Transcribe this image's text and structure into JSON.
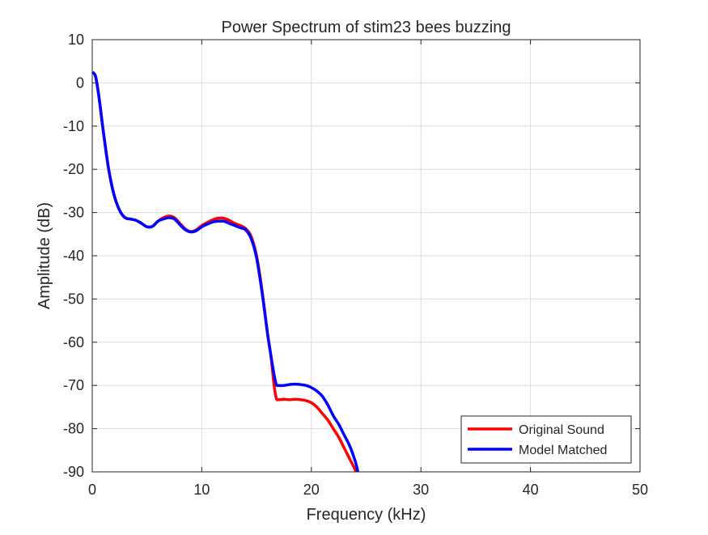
{
  "chart_data": {
    "type": "line",
    "title": "Power Spectrum of stim23 bees buzzing",
    "xlabel": "Frequency (kHz)",
    "ylabel": "Amplitude (dB)",
    "xlim": [
      0,
      50
    ],
    "ylim": [
      -90,
      10
    ],
    "xticks": [
      0,
      10,
      20,
      30,
      40,
      50
    ],
    "yticks": [
      10,
      0,
      -10,
      -20,
      -30,
      -40,
      -50,
      -60,
      -70,
      -80,
      -90
    ],
    "grid": true,
    "legend_position": "bottom-right",
    "series": [
      {
        "name": "Original Sound",
        "color": "#ff0000",
        "x": [
          0,
          0.3,
          0.6,
          1.0,
          1.5,
          2.0,
          2.5,
          3.0,
          3.5,
          4.0,
          4.5,
          5.0,
          5.5,
          6.0,
          6.5,
          7.0,
          7.5,
          8.0,
          8.5,
          9.0,
          9.5,
          10.0,
          10.5,
          11.0,
          11.5,
          12.0,
          12.5,
          13.0,
          13.5,
          14.0,
          14.5,
          15.0,
          15.5,
          16.0,
          16.3,
          16.6,
          16.8,
          17.0,
          17.5,
          18.0,
          18.5,
          19.0,
          19.5,
          20.0,
          20.5,
          21.0,
          21.5,
          22.0,
          22.5,
          23.0,
          23.5,
          24.0,
          24.3
        ],
        "y": [
          2.5,
          1.5,
          -3.0,
          -11.0,
          -20.0,
          -26.0,
          -29.5,
          -31.2,
          -31.5,
          -31.8,
          -32.5,
          -33.3,
          -33.2,
          -32.0,
          -31.2,
          -30.8,
          -31.2,
          -32.5,
          -33.8,
          -34.4,
          -34.0,
          -33.0,
          -32.3,
          -31.7,
          -31.3,
          -31.3,
          -31.8,
          -32.5,
          -33.0,
          -33.7,
          -35.5,
          -40.0,
          -48.0,
          -58.0,
          -63.0,
          -70.0,
          -73.0,
          -73.3,
          -73.2,
          -73.3,
          -73.2,
          -73.3,
          -73.5,
          -74.0,
          -75.0,
          -76.5,
          -78.0,
          -80.0,
          -82.0,
          -84.5,
          -87.0,
          -89.5,
          -91.0
        ]
      },
      {
        "name": "Model Matched",
        "color": "#0000ff",
        "x": [
          0,
          0.3,
          0.6,
          1.0,
          1.5,
          2.0,
          2.5,
          3.0,
          3.5,
          4.0,
          4.5,
          5.0,
          5.5,
          6.0,
          6.5,
          7.0,
          7.5,
          8.0,
          8.5,
          9.0,
          9.5,
          10.0,
          10.5,
          11.0,
          11.5,
          12.0,
          12.5,
          13.0,
          13.5,
          14.0,
          14.5,
          15.0,
          15.5,
          16.0,
          16.3,
          16.6,
          16.8,
          17.0,
          17.5,
          18.0,
          18.5,
          19.0,
          19.5,
          20.0,
          20.5,
          21.0,
          21.5,
          22.0,
          22.5,
          23.0,
          23.5,
          24.0,
          24.3
        ],
        "y": [
          2.5,
          1.5,
          -3.0,
          -11.0,
          -20.0,
          -26.0,
          -29.5,
          -31.2,
          -31.5,
          -31.8,
          -32.5,
          -33.3,
          -33.2,
          -32.0,
          -31.5,
          -31.2,
          -31.5,
          -32.8,
          -34.0,
          -34.5,
          -34.2,
          -33.3,
          -32.7,
          -32.2,
          -32.0,
          -32.0,
          -32.5,
          -33.0,
          -33.5,
          -34.0,
          -36.0,
          -40.5,
          -48.5,
          -58.0,
          -63.0,
          -67.5,
          -69.8,
          -70.0,
          -70.0,
          -69.8,
          -69.7,
          -69.8,
          -70.0,
          -70.5,
          -71.3,
          -72.5,
          -74.5,
          -77.0,
          -79.0,
          -81.5,
          -84.0,
          -87.5,
          -90.5
        ]
      }
    ]
  }
}
